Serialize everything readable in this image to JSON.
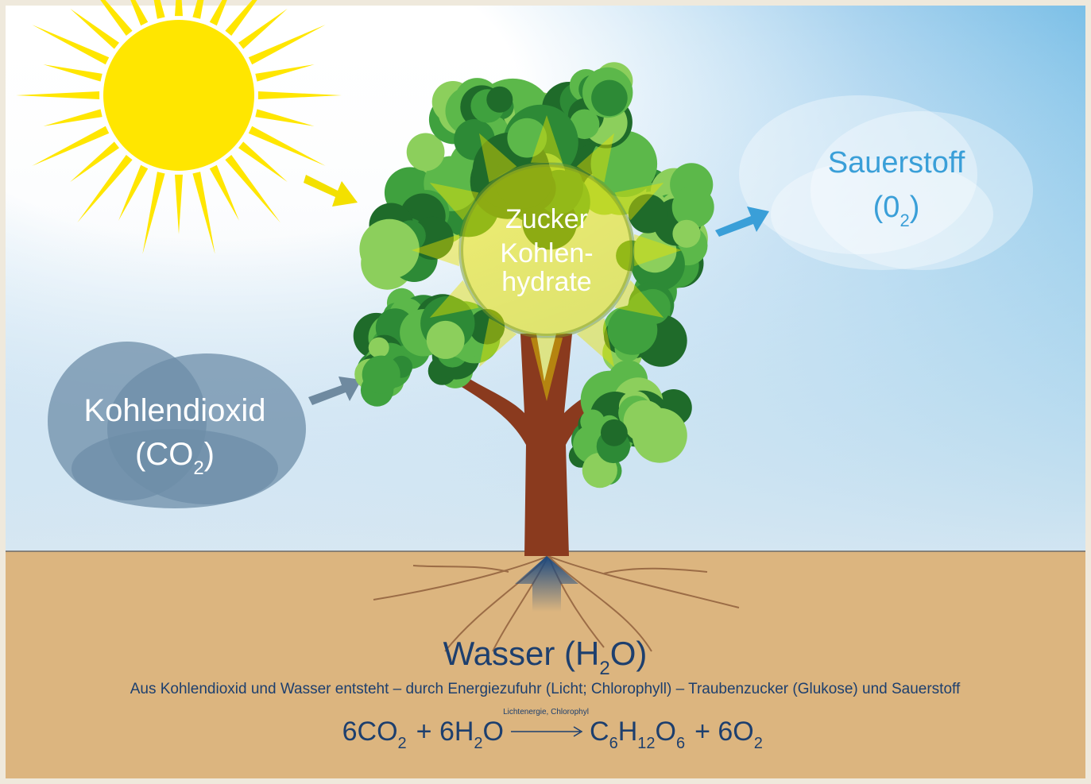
{
  "oxygen": {
    "label": "Sauerstoff",
    "formula": [
      {
        "text": "(0",
        "sub": "2"
      },
      {
        "text": ")"
      }
    ]
  },
  "sugar": {
    "lines": [
      "Zucker",
      "Kohlen-",
      "hydrate"
    ]
  },
  "carbon_dioxide": {
    "label": "Kohlendioxid",
    "formula": [
      {
        "text": "(CO",
        "sub": "2"
      },
      {
        "text": ")"
      }
    ]
  },
  "water": {
    "formula": [
      {
        "text": "Wasser (H",
        "sub": "2"
      },
      {
        "text": "O)"
      }
    ]
  },
  "caption": "Aus Kohlendioxid und Wasser entsteht – durch Energiezufuhr (Licht; Chlorophyll) – Traubenzucker (Glukose) und Sauerstoff",
  "equation": {
    "left": [
      {
        "text": "6CO",
        "sub": "2"
      },
      {
        "text": "+ 6H",
        "sub": "2"
      },
      {
        "text": "O"
      }
    ],
    "arrow_label": "Lichtenergie, Chlorophyl",
    "right": [
      {
        "text": "C",
        "sub": "6"
      },
      {
        "text": "H",
        "sub": "12"
      },
      {
        "text": "O",
        "sub": "6"
      },
      {
        "text": "+ 6O",
        "sub": "2"
      }
    ]
  }
}
